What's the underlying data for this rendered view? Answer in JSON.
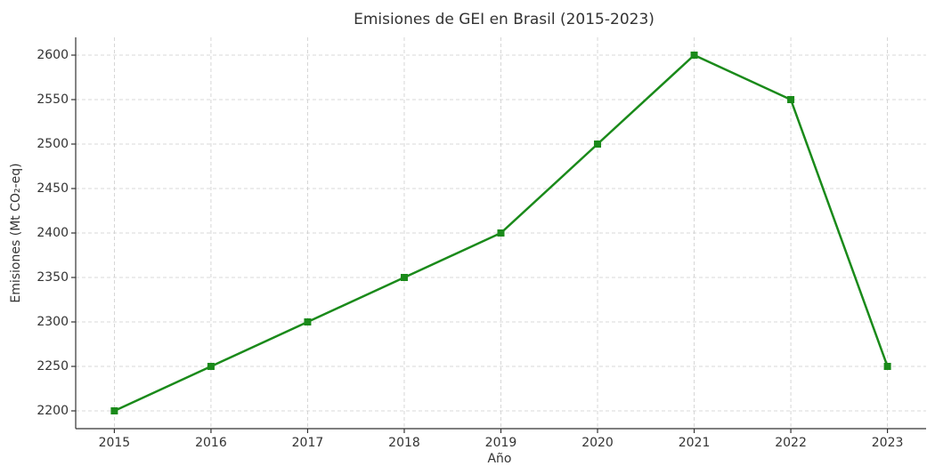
{
  "chart_data": {
    "type": "line",
    "title": "Emisiones de GEI en Brasil (2015-2023)",
    "x_label": "Año",
    "y_label": "Emisiones (Mt CO₂-eq)",
    "x": [
      2015,
      2016,
      2017,
      2018,
      2019,
      2020,
      2021,
      2022,
      2023
    ],
    "series": [
      {
        "name": "Emisiones",
        "color": "#1a8a1a",
        "values": [
          2200,
          2250,
          2300,
          2350,
          2400,
          2500,
          2600,
          2550,
          2250
        ]
      }
    ],
    "xlim": [
      2014.6,
      2023.4
    ],
    "xticks": [
      2015,
      2016,
      2017,
      2018,
      2019,
      2020,
      2021,
      2022,
      2023
    ],
    "ylim": [
      2180,
      2620
    ],
    "yticks": [
      2200,
      2250,
      2300,
      2350,
      2400,
      2450,
      2500,
      2550,
      2600
    ],
    "grid": true
  }
}
